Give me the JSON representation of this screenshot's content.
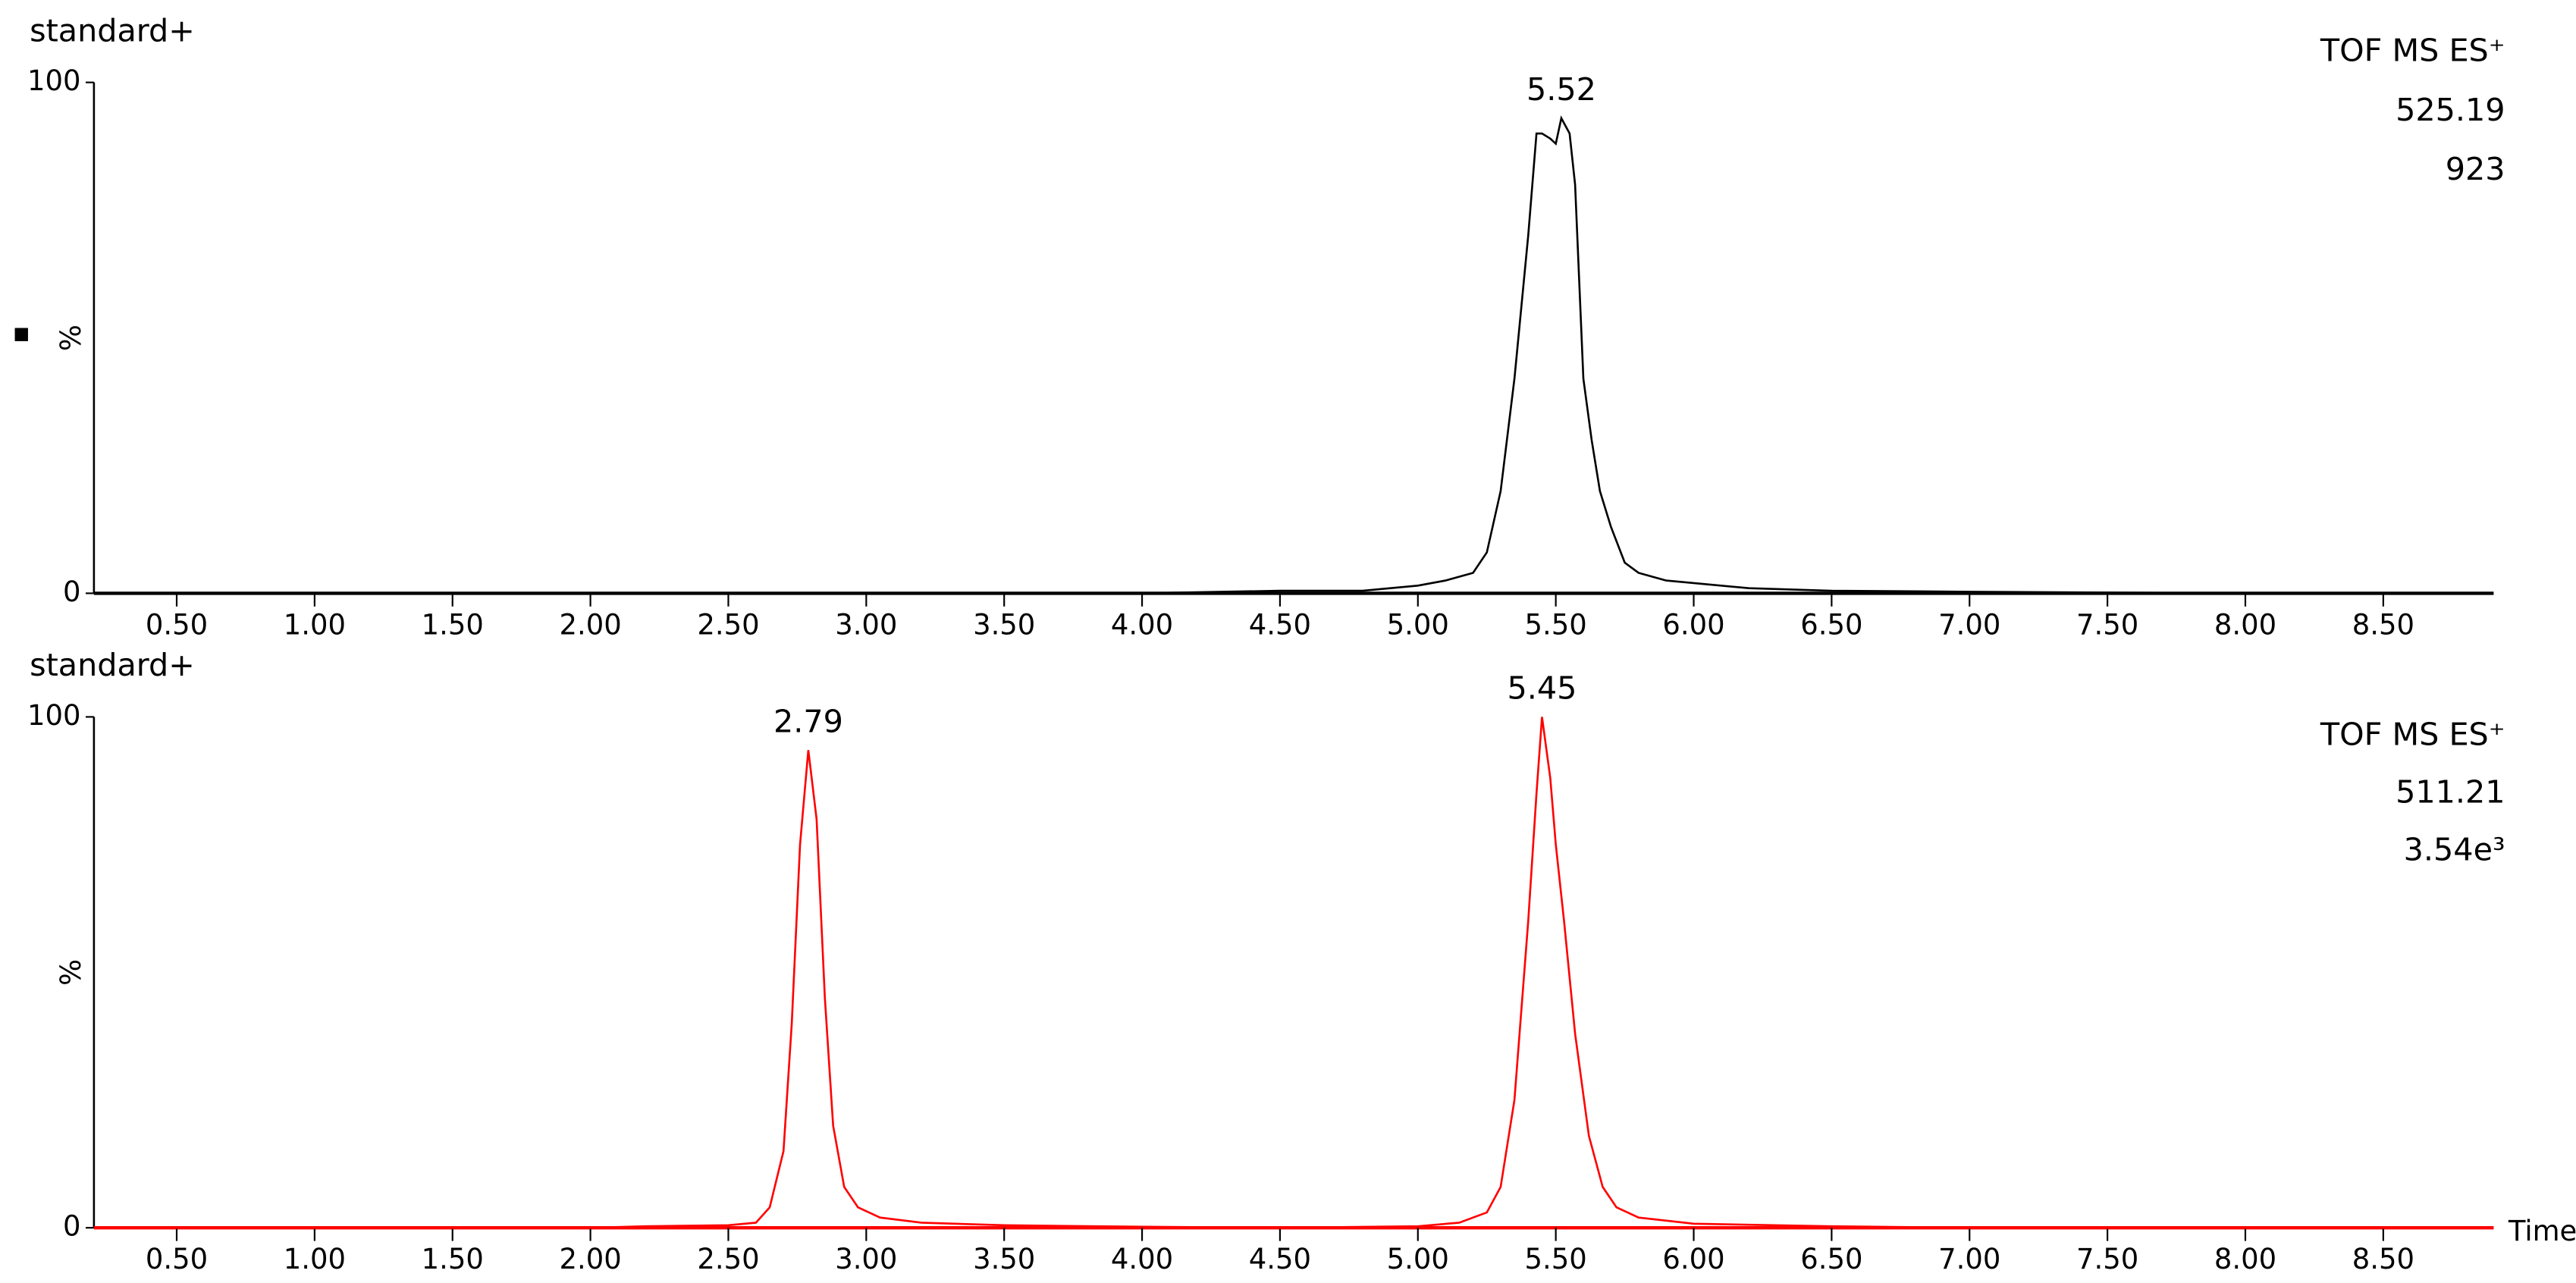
{
  "chart_data": [
    {
      "type": "line",
      "title": "standard+",
      "info": [
        "TOF MS ES⁺",
        "525.19",
        "923"
      ],
      "y_label": "%",
      "x": [
        0.2,
        1.0,
        2.0,
        3.0,
        4.0,
        4.5,
        4.8,
        5.0,
        5.1,
        5.2,
        5.25,
        5.3,
        5.35,
        5.4,
        5.43,
        5.45,
        5.48,
        5.5,
        5.52,
        5.55,
        5.57,
        5.6,
        5.63,
        5.66,
        5.7,
        5.75,
        5.8,
        5.9,
        6.0,
        6.2,
        6.5,
        7.0,
        8.0,
        8.9
      ],
      "series": [
        {
          "color": "#000000",
          "values": [
            0,
            0,
            0,
            0,
            0,
            0.5,
            0.5,
            1.5,
            2.5,
            4,
            8,
            20,
            42,
            70,
            90,
            90,
            89,
            88,
            93,
            90,
            80,
            42,
            30,
            20,
            13,
            6,
            4,
            2.5,
            2,
            1,
            0.5,
            0.3,
            0,
            0
          ]
        }
      ],
      "xlim": [
        0.2,
        8.9
      ],
      "ylim": [
        0,
        100
      ],
      "xticks": [
        {
          "value": 0.5,
          "label": "0.50"
        },
        {
          "value": 1.0,
          "label": "1.00"
        },
        {
          "value": 1.5,
          "label": "1.50"
        },
        {
          "value": 2.0,
          "label": "2.00"
        },
        {
          "value": 2.5,
          "label": "2.50"
        },
        {
          "value": 3.0,
          "label": "3.00"
        },
        {
          "value": 3.5,
          "label": "3.50"
        },
        {
          "value": 4.0,
          "label": "4.00"
        },
        {
          "value": 4.5,
          "label": "4.50"
        },
        {
          "value": 5.0,
          "label": "5.00"
        },
        {
          "value": 5.5,
          "label": "5.50"
        },
        {
          "value": 6.0,
          "label": "6.00"
        },
        {
          "value": 6.5,
          "label": "6.50"
        },
        {
          "value": 7.0,
          "label": "7.00"
        },
        {
          "value": 7.5,
          "label": "7.50"
        },
        {
          "value": 8.0,
          "label": "8.00"
        },
        {
          "value": 8.5,
          "label": "8.50"
        }
      ],
      "yticks": [
        0,
        100
      ],
      "peak_labels": [
        5.52
      ]
    },
    {
      "type": "line",
      "title": "standard+",
      "info": [
        "TOF MS ES⁺",
        "511.21",
        "3.54e³"
      ],
      "y_label": "%",
      "x_label": "Time",
      "x": [
        0.2,
        2.0,
        2.2,
        2.5,
        2.6,
        2.65,
        2.7,
        2.73,
        2.76,
        2.79,
        2.82,
        2.85,
        2.88,
        2.92,
        2.97,
        3.05,
        3.2,
        3.5,
        4.0,
        4.5,
        5.0,
        5.15,
        5.25,
        5.3,
        5.35,
        5.4,
        5.43,
        5.45,
        5.48,
        5.5,
        5.53,
        5.57,
        5.62,
        5.67,
        5.72,
        5.8,
        6.0,
        6.5,
        7.0,
        8.9
      ],
      "series": [
        {
          "color": "#ff0000",
          "values": [
            0,
            0,
            0.3,
            0.5,
            1,
            4,
            15,
            40,
            75,
            93.5,
            80,
            45,
            20,
            8,
            4,
            2,
            1,
            0.5,
            0.2,
            0,
            0.3,
            1,
            3,
            8,
            25,
            60,
            85,
            100,
            88,
            75,
            60,
            38,
            18,
            8,
            4,
            2,
            0.8,
            0.3,
            0,
            0
          ]
        }
      ],
      "xlim": [
        0.2,
        8.9
      ],
      "ylim": [
        0,
        100
      ],
      "xticks": [
        {
          "value": 0.5,
          "label": "0.50"
        },
        {
          "value": 1.0,
          "label": "1.00"
        },
        {
          "value": 1.5,
          "label": "1.50"
        },
        {
          "value": 2.0,
          "label": "2.00"
        },
        {
          "value": 2.5,
          "label": "2.50"
        },
        {
          "value": 3.0,
          "label": "3.00"
        },
        {
          "value": 3.5,
          "label": "3.50"
        },
        {
          "value": 4.0,
          "label": "4.00"
        },
        {
          "value": 4.5,
          "label": "4.50"
        },
        {
          "value": 5.0,
          "label": "5.00"
        },
        {
          "value": 5.5,
          "label": "5.50"
        },
        {
          "value": 6.0,
          "label": "6.00"
        },
        {
          "value": 6.5,
          "label": "6.50"
        },
        {
          "value": 7.0,
          "label": "7.00"
        },
        {
          "value": 7.5,
          "label": "7.50"
        },
        {
          "value": 8.0,
          "label": "8.00"
        },
        {
          "value": 8.5,
          "label": "8.50"
        }
      ],
      "yticks": [
        0,
        100
      ],
      "peak_labels": [
        2.79,
        5.45
      ]
    }
  ]
}
